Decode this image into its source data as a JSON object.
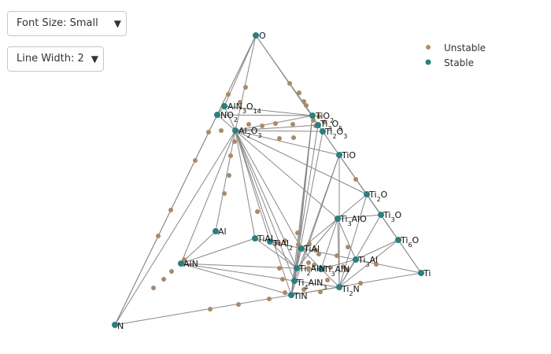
{
  "controls": {
    "font_size": {
      "value": "Font Size: Small"
    },
    "line_width": {
      "value": "Line Width: 2"
    }
  },
  "legend": [
    {
      "label": "Unstable",
      "color": "#b0906a"
    },
    {
      "label": "Stable",
      "color": "#2a7f7f"
    }
  ],
  "colors": {
    "edge": "#888888",
    "stable": "#2a7f7f",
    "unstable": "#a88a6a"
  },
  "chart_data": {
    "type": "ternary-phase-diagram",
    "stable_phases": [
      {
        "id": "O",
        "label": "O"
      },
      {
        "id": "AlN3O14",
        "label": "AlN3O14"
      },
      {
        "id": "NO2",
        "label": "NO2"
      },
      {
        "id": "Al2O3",
        "label": "Al2O3"
      },
      {
        "id": "TiO2",
        "label": "TiO2"
      },
      {
        "id": "Ti3O5",
        "label": "Ti3O5"
      },
      {
        "id": "Ti2O3",
        "label": "Ti2O3"
      },
      {
        "id": "TiO",
        "label": "TiO"
      },
      {
        "id": "Ti2O",
        "label": "Ti2O"
      },
      {
        "id": "Ti3O",
        "label": "Ti3O"
      },
      {
        "id": "Ti3AlO",
        "label": "Ti3AlO"
      },
      {
        "id": "Ti6O",
        "label": "Ti6O"
      },
      {
        "id": "Al",
        "label": "Al"
      },
      {
        "id": "TiAl3",
        "label": "TiAl3"
      },
      {
        "id": "TiAl2",
        "label": "TiAl2"
      },
      {
        "id": "TiAl",
        "label": "TiAl"
      },
      {
        "id": "Ti3Al",
        "label": "Ti3Al"
      },
      {
        "id": "AlN",
        "label": "AlN"
      },
      {
        "id": "Ti2AlN",
        "label": "Ti2AlN"
      },
      {
        "id": "Ti3AlN",
        "label": "Ti3AlN"
      },
      {
        "id": "Ti4AlN3",
        "label": "Ti4AlN3"
      },
      {
        "id": "TiN",
        "label": "TiN"
      },
      {
        "id": "Ti2N",
        "label": "Ti2N"
      },
      {
        "id": "Ti",
        "label": "Ti"
      },
      {
        "id": "N",
        "label": "N"
      }
    ],
    "tie_lines": [
      [
        "O",
        "N"
      ],
      [
        "O",
        "Ti"
      ],
      [
        "N",
        "Ti"
      ],
      [
        "O",
        "AlN3O14"
      ],
      [
        "O",
        "NO2"
      ],
      [
        "O",
        "Al2O3"
      ],
      [
        "O",
        "TiO2"
      ],
      [
        "NO2",
        "N"
      ],
      [
        "NO2",
        "AlN3O14"
      ],
      [
        "AlN3O14",
        "TiO2"
      ],
      [
        "AlN3O14",
        "Al2O3"
      ],
      [
        "NO2",
        "TiO2"
      ],
      [
        "NO2",
        "Al2O3"
      ],
      [
        "Al2O3",
        "TiO2"
      ],
      [
        "Al2O3",
        "Ti3O5"
      ],
      [
        "Al2O3",
        "Ti2O3"
      ],
      [
        "Al2O3",
        "TiO"
      ],
      [
        "Al2O3",
        "Ti2O"
      ],
      [
        "Al2O3",
        "Ti3AlO"
      ],
      [
        "Al2O3",
        "AlN"
      ],
      [
        "Al2O3",
        "N"
      ],
      [
        "Al2O3",
        "Al"
      ],
      [
        "Al2O3",
        "TiAl3"
      ],
      [
        "Al2O3",
        "TiAl2"
      ],
      [
        "Al2O3",
        "TiAl"
      ],
      [
        "Al2O3",
        "Ti2AlN"
      ],
      [
        "Al2O3",
        "Ti4AlN3"
      ],
      [
        "Al2O3",
        "TiN"
      ],
      [
        "TiO2",
        "Ti3O5"
      ],
      [
        "Ti3O5",
        "Ti2O3"
      ],
      [
        "Ti2O3",
        "TiO"
      ],
      [
        "TiO",
        "Ti2O"
      ],
      [
        "Ti2O",
        "Ti3O"
      ],
      [
        "Ti3O",
        "Ti6O"
      ],
      [
        "Ti6O",
        "Ti"
      ],
      [
        "TiO2",
        "Ti2AlN"
      ],
      [
        "TiO2",
        "TiN"
      ],
      [
        "TiO2",
        "Ti4AlN3"
      ],
      [
        "Ti3O5",
        "TiN"
      ],
      [
        "Ti2O3",
        "TiN"
      ],
      [
        "TiO",
        "TiN"
      ],
      [
        "TiO",
        "Ti2N"
      ],
      [
        "TiO",
        "Ti4AlN3"
      ],
      [
        "Ti2O",
        "Ti3AlO"
      ],
      [
        "Ti2O",
        "Ti2N"
      ],
      [
        "Ti3O",
        "Ti3AlO"
      ],
      [
        "Ti3O",
        "Ti2N"
      ],
      [
        "Ti6O",
        "Ti3Al"
      ],
      [
        "Ti6O",
        "Ti2N"
      ],
      [
        "Ti3AlO",
        "TiAl"
      ],
      [
        "Ti3AlO",
        "Ti2AlN"
      ],
      [
        "Ti3AlO",
        "Ti3AlN"
      ],
      [
        "Ti3AlO",
        "Ti3Al"
      ],
      [
        "Ti3AlO",
        "Ti2N"
      ],
      [
        "Al",
        "AlN"
      ],
      [
        "AlN",
        "TiAl3"
      ],
      [
        "AlN",
        "Ti2AlN"
      ],
      [
        "AlN",
        "Ti4AlN3"
      ],
      [
        "AlN",
        "TiN"
      ],
      [
        "TiAl3",
        "TiAl2"
      ],
      [
        "TiAl2",
        "TiAl"
      ],
      [
        "TiAl",
        "Ti3Al"
      ],
      [
        "TiAl",
        "Ti2AlN"
      ],
      [
        "TiAl",
        "Ti3AlN"
      ],
      [
        "TiAl3",
        "Ti2AlN"
      ],
      [
        "TiAl2",
        "Ti2AlN"
      ],
      [
        "Ti3Al",
        "Ti"
      ],
      [
        "Ti3Al",
        "Ti2N"
      ],
      [
        "Ti3Al",
        "Ti3AlN"
      ],
      [
        "Ti2AlN",
        "Ti3AlN"
      ],
      [
        "Ti2AlN",
        "Ti4AlN3"
      ],
      [
        "Ti3AlN",
        "Ti2N"
      ],
      [
        "Ti4AlN3",
        "TiN"
      ],
      [
        "Ti4AlN3",
        "Ti2N"
      ],
      [
        "TiN",
        "Ti2N"
      ]
    ],
    "unstable_phase_count": 58
  }
}
